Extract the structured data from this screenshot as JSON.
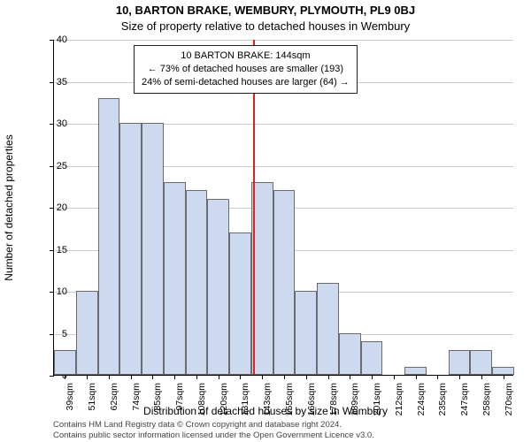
{
  "titles": {
    "main": "10, BARTON BRAKE, WEMBURY, PLYMOUTH, PL9 0BJ",
    "sub": "Size of property relative to detached houses in Wembury"
  },
  "axes": {
    "y_label": "Number of detached properties",
    "x_label": "Distribution of detached houses by size in Wembury",
    "y_max": 40,
    "y_ticks": [
      0,
      5,
      10,
      15,
      20,
      25,
      30,
      35,
      40
    ],
    "x_tick_labels": [
      "39sqm",
      "51sqm",
      "62sqm",
      "74sqm",
      "85sqm",
      "97sqm",
      "108sqm",
      "120sqm",
      "131sqm",
      "143sqm",
      "155sqm",
      "166sqm",
      "178sqm",
      "189sqm",
      "201sqm",
      "212sqm",
      "224sqm",
      "235sqm",
      "247sqm",
      "258sqm",
      "270sqm"
    ]
  },
  "chart": {
    "type": "histogram",
    "bar_fill": "#cdd9ee",
    "bar_border": "#6b6b6b",
    "background": "#ffffff",
    "grid_color": "#cccccc",
    "marker_color": "#e02020",
    "values": [
      3,
      10,
      33,
      30,
      30,
      23,
      22,
      21,
      17,
      23,
      22,
      10,
      11,
      5,
      4,
      0,
      1,
      0,
      3,
      3,
      1
    ],
    "marker_at_bin_index": 9
  },
  "annotation": {
    "line1": "10 BARTON BRAKE: 144sqm",
    "line2": "← 73% of detached houses are smaller (193)",
    "line3": "24% of semi-detached houses are larger (64) →"
  },
  "attribution": {
    "line1": "Contains HM Land Registry data © Crown copyright and database right 2024.",
    "line2": "Contains public sector information licensed under the Open Government Licence v3.0."
  }
}
